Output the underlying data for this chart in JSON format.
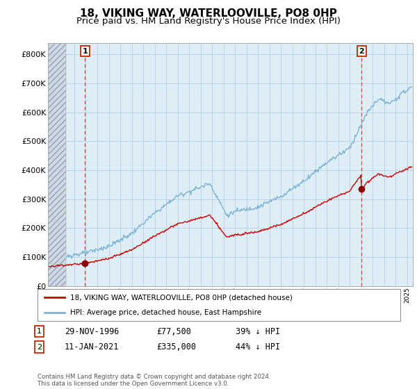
{
  "title": "18, VIKING WAY, WATERLOOVILLE, PO8 0HP",
  "subtitle": "Price paid vs. HM Land Registry's House Price Index (HPI)",
  "ylabel_ticks": [
    "£0",
    "£100K",
    "£200K",
    "£300K",
    "£400K",
    "£500K",
    "£600K",
    "£700K",
    "£800K"
  ],
  "ytick_values": [
    0,
    100000,
    200000,
    300000,
    400000,
    500000,
    600000,
    700000,
    800000
  ],
  "ylim": [
    0,
    840000
  ],
  "xlim_start": 1993.7,
  "xlim_end": 2025.5,
  "hpi_color": "#7fb3d3",
  "hpi_fill_color": "#ddeef6",
  "price_color": "#cc0000",
  "marker_color": "#8b0000",
  "sale1_x": 1996.92,
  "sale1_y": 77500,
  "sale1_label": "1",
  "sale2_x": 2021.03,
  "sale2_y": 335000,
  "sale2_label": "2",
  "legend_label1": "18, VIKING WAY, WATERLOOVILLE, PO8 0HP (detached house)",
  "legend_label2": "HPI: Average price, detached house, East Hampshire",
  "table_row1_num": "1",
  "table_row1_date": "29-NOV-1996",
  "table_row1_price": "£77,500",
  "table_row1_hpi": "39% ↓ HPI",
  "table_row2_num": "2",
  "table_row2_date": "11-JAN-2021",
  "table_row2_price": "£335,000",
  "table_row2_hpi": "44% ↓ HPI",
  "footer": "Contains HM Land Registry data © Crown copyright and database right 2024.\nThis data is licensed under the Open Government Licence v3.0.",
  "hatch_start": 1993.7,
  "hatch_end": 1995.3,
  "background_color": "#ffffff",
  "plot_bg_color": "#ddeef6",
  "grid_color": "#b8cfe0",
  "title_fontsize": 11,
  "subtitle_fontsize": 9.5
}
